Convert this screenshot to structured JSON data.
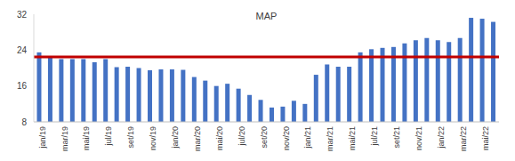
{
  "chart_data": {
    "type": "bar",
    "title": "MAP",
    "categories": [
      "jan/19",
      null,
      "mar/19",
      null,
      "mai/19",
      null,
      "jul/19",
      null,
      "set/19",
      null,
      "nov/19",
      null,
      "jan/20",
      null,
      "mar/20",
      null,
      "mai/20",
      null,
      "jul/20",
      null,
      "set/20",
      null,
      "nov/20",
      null,
      "jan/21",
      null,
      "mar/21",
      null,
      "mai/21",
      null,
      "jul/21",
      null,
      "set/21",
      null,
      "nov/21",
      null,
      "jan/22",
      null,
      "mar/22",
      null,
      "mai/22",
      null
    ],
    "values": [
      23.5,
      22.5,
      22,
      22,
      22,
      21.3,
      22,
      20.2,
      20.3,
      20,
      19.5,
      19.7,
      19.7,
      19.6,
      18,
      17.2,
      16,
      16.5,
      15.4,
      14,
      12.9,
      11.2,
      11.4,
      12.7,
      12,
      18.5,
      20.8,
      20.3,
      20.3,
      23.5,
      24.2,
      24.5,
      24.7,
      25.5,
      26.2,
      26.7,
      26.2,
      25.8,
      26.7,
      31.2,
      31,
      30.3
    ],
    "reference": 22.5,
    "color": "#4472c4",
    "ylim": [
      8,
      32
    ],
    "yticks": [
      8,
      16,
      24,
      32
    ],
    "grid": false
  }
}
